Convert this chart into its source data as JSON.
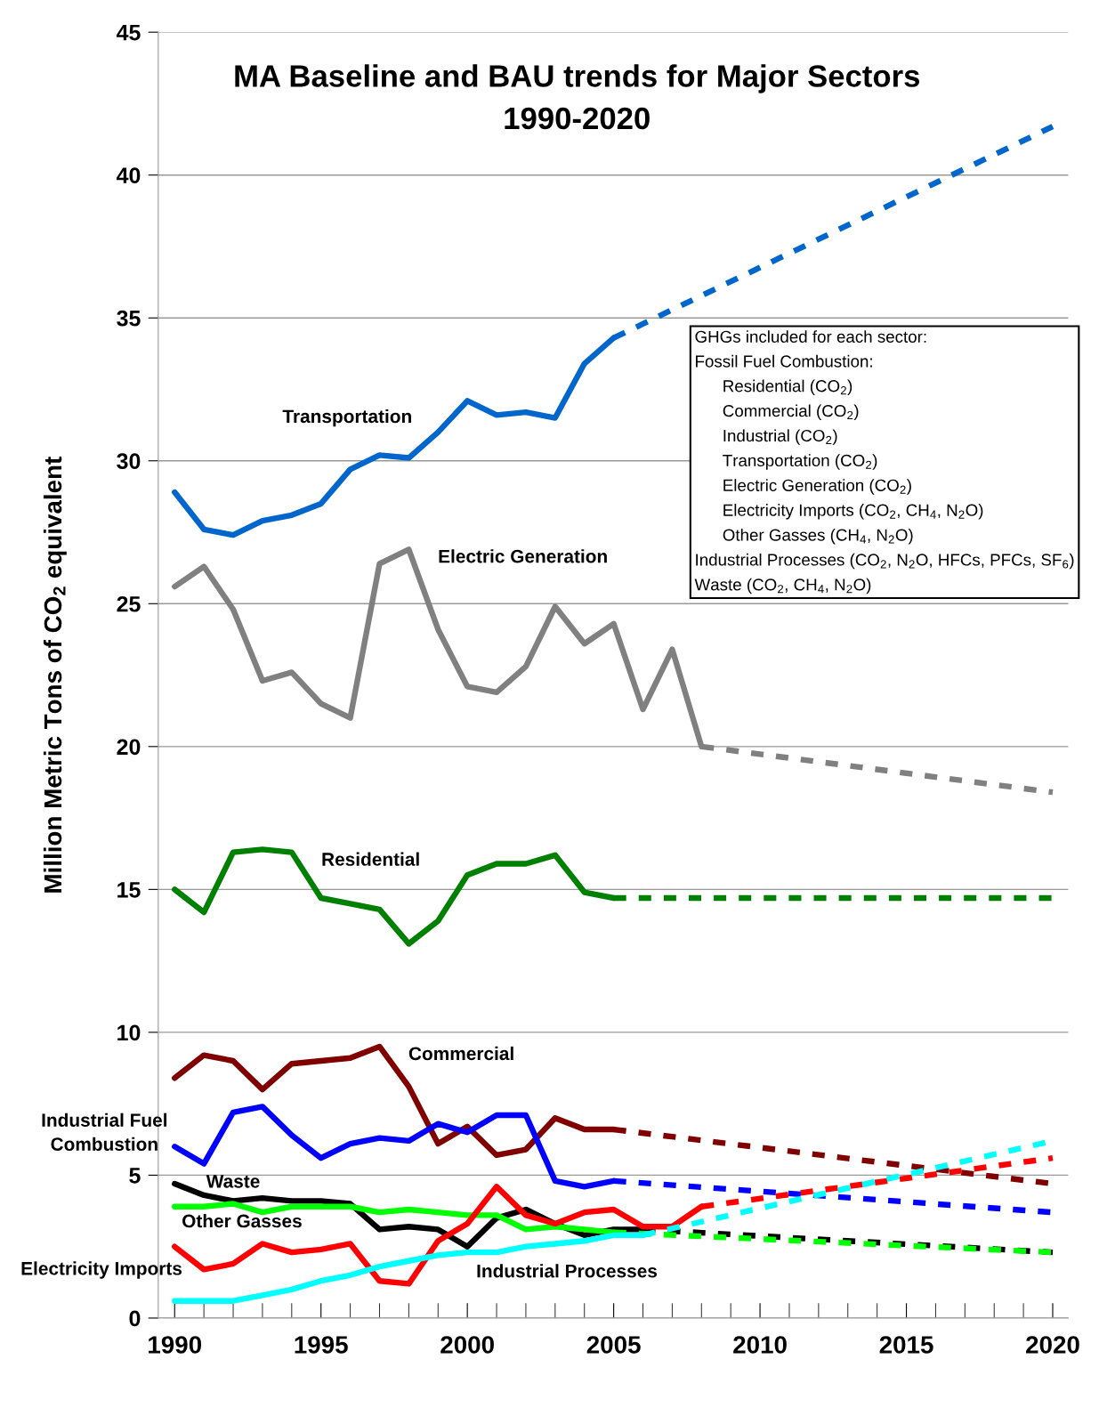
{
  "chart_data": {
    "type": "line",
    "title": "MA Baseline and BAU trends for Major Sectors\n1990-2020",
    "ylabel": "Million Metric Tons of CO$_{2}$ equivalent",
    "xlim": [
      1989.44,
      2020.53
    ],
    "xticks": [
      1990,
      1995,
      2000,
      2005,
      2010,
      2015,
      2020
    ],
    "ylim": [
      0,
      45
    ],
    "yticks": [
      0,
      5,
      10,
      15,
      20,
      25,
      30,
      35,
      40,
      45
    ],
    "grid": "y",
    "legend": false,
    "marker": "none",
    "annotations": [
      "GHGs included for each sector:\nFossil Fuel Combustion:\n      Residential (CO$_{2}$)\n      Commercial (CO$_{2}$)\n      Industrial (CO$_{2}$)\n      Transportation (CO$_{2}$)\n      Electric Generation (CO$_{2}$)\n      Electricity Imports (CO$_{2}$, CH$_{4}$, N$_{2}$O)\n      Other Gasses (CH$_{4}$, N$_{2}$O)\nIndustrial Processes (CO$_{2}$, N$_{2}$O, HFCs, PFCs, SF$_{6}$)\nWaste (CO$_{2}$, CH$_{4}$, N$_{2}$O)"
    ],
    "series": [
      {
        "name": "Transportation",
        "color": "#0066cc",
        "line_style": "solid",
        "x": [
          1990,
          1991,
          1992,
          1993,
          1994,
          1995,
          1996,
          1997,
          1998,
          1999,
          2000,
          2001,
          2002,
          2003,
          2004,
          2005
        ],
        "values": [
          28.9,
          27.6,
          27.4,
          27.9,
          28.1,
          28.5,
          29.7,
          30.2,
          30.1,
          31.0,
          32.1,
          31.6,
          31.7,
          31.5,
          33.4,
          34.3
        ]
      },
      {
        "color": "#0066cc",
        "line_style": "dashed",
        "x": [
          2005,
          2020
        ],
        "values": [
          34.3,
          41.7
        ]
      },
      {
        "name": "Electric Generation",
        "color": "#808080",
        "line_style": "solid",
        "x": [
          1990,
          1991,
          1992,
          1993,
          1994,
          1995,
          1996,
          1997,
          1998,
          1999,
          2000,
          2001,
          2002,
          2003,
          2004,
          2005,
          2006,
          2007,
          2008
        ],
        "values": [
          25.6,
          26.3,
          24.8,
          22.3,
          22.6,
          21.5,
          21.0,
          26.4,
          26.9,
          24.1,
          22.1,
          21.9,
          22.8,
          24.9,
          23.6,
          24.3,
          21.3,
          23.4,
          20.0
        ]
      },
      {
        "color": "#808080",
        "line_style": "dashed",
        "x": [
          2008,
          2020
        ],
        "values": [
          20.0,
          18.4
        ]
      },
      {
        "name": "Residential",
        "color": "#008000",
        "line_style": "solid",
        "x": [
          1990,
          1991,
          1992,
          1993,
          1994,
          1995,
          1996,
          1997,
          1998,
          1999,
          2000,
          2001,
          2002,
          2003,
          2004,
          2005
        ],
        "values": [
          15.0,
          14.2,
          16.3,
          16.4,
          16.3,
          14.7,
          14.5,
          14.3,
          13.1,
          13.9,
          15.5,
          15.9,
          15.9,
          16.2,
          14.9,
          14.7
        ]
      },
      {
        "color": "#008000",
        "line_style": "dashed",
        "x": [
          2005,
          2020
        ],
        "values": [
          14.7,
          14.7
        ]
      },
      {
        "name": "Commercial",
        "color": "#800000",
        "line_style": "solid",
        "x": [
          1990,
          1991,
          1992,
          1993,
          1994,
          1995,
          1996,
          1997,
          1998,
          1999,
          2000,
          2001,
          2002,
          2003,
          2004,
          2005
        ],
        "values": [
          8.4,
          9.2,
          9.0,
          8.0,
          8.9,
          9.0,
          9.1,
          9.5,
          8.1,
          6.1,
          6.7,
          5.7,
          5.9,
          7.0,
          6.6,
          6.6
        ]
      },
      {
        "color": "#800000",
        "line_style": "dashed",
        "x": [
          2005,
          2020
        ],
        "values": [
          6.6,
          4.7
        ]
      },
      {
        "name": "Industrial Fuel\nCombustion",
        "color": "#0000ff",
        "line_style": "solid",
        "x": [
          1990,
          1991,
          1992,
          1993,
          1994,
          1995,
          1996,
          1997,
          1998,
          1999,
          2000,
          2001,
          2002,
          2003,
          2004,
          2005
        ],
        "values": [
          6.0,
          5.4,
          7.2,
          7.4,
          6.4,
          5.6,
          6.1,
          6.3,
          6.2,
          6.8,
          6.5,
          7.1,
          7.1,
          4.8,
          4.6,
          4.8
        ]
      },
      {
        "color": "#0000ff",
        "line_style": "dashed",
        "x": [
          2005,
          2020
        ],
        "values": [
          4.8,
          3.7
        ]
      },
      {
        "name": "Waste",
        "color": "#000000",
        "line_style": "solid",
        "x": [
          1990,
          1991,
          1992,
          1993,
          1994,
          1995,
          1996,
          1997,
          1998,
          1999,
          2000,
          2001,
          2002,
          2003,
          2004,
          2005,
          2006
        ],
        "values": [
          4.7,
          4.3,
          4.1,
          4.2,
          4.1,
          4.1,
          4.0,
          3.1,
          3.2,
          3.1,
          2.5,
          3.5,
          3.8,
          3.3,
          2.9,
          3.1,
          3.1
        ]
      },
      {
        "color": "#000000",
        "line_style": "dashed",
        "x": [
          2006,
          2020
        ],
        "values": [
          3.1,
          2.3
        ]
      },
      {
        "name": "Other Gasses",
        "color": "#00ff00",
        "line_style": "solid",
        "x": [
          1990,
          1991,
          1992,
          1993,
          1994,
          1995,
          1996,
          1997,
          1998,
          1999,
          2000,
          2001,
          2002,
          2003,
          2004,
          2005
        ],
        "values": [
          3.9,
          3.9,
          4.0,
          3.7,
          3.9,
          3.9,
          3.9,
          3.7,
          3.8,
          3.7,
          3.6,
          3.6,
          3.1,
          3.2,
          3.1,
          3.0
        ]
      },
      {
        "color": "#00ff00",
        "line_style": "dashed",
        "x": [
          2005,
          2020
        ],
        "values": [
          3.0,
          2.3
        ]
      },
      {
        "name": "Electricity Imports",
        "color": "#ff0000",
        "line_style": "solid",
        "x": [
          1990,
          1991,
          1992,
          1993,
          1994,
          1995,
          1996,
          1997,
          1998,
          1999,
          2000,
          2001,
          2002,
          2003,
          2004,
          2005,
          2006,
          2007,
          2008
        ],
        "values": [
          2.5,
          1.7,
          1.9,
          2.6,
          2.3,
          2.4,
          2.6,
          1.3,
          1.2,
          2.7,
          3.3,
          4.6,
          3.6,
          3.3,
          3.7,
          3.8,
          3.2,
          3.2,
          3.9
        ]
      },
      {
        "color": "#ff0000",
        "line_style": "dashed",
        "x": [
          2008,
          2020
        ],
        "values": [
          3.9,
          5.6
        ]
      },
      {
        "name": "Industrial Processes",
        "color": "#00ffff",
        "line_style": "solid",
        "x": [
          1990,
          1991,
          1992,
          1993,
          1994,
          1995,
          1996,
          1997,
          1998,
          1999,
          2000,
          2001,
          2002,
          2003,
          2004,
          2005,
          2006
        ],
        "values": [
          0.6,
          0.6,
          0.6,
          0.8,
          1.0,
          1.3,
          1.5,
          1.8,
          2.0,
          2.2,
          2.3,
          2.3,
          2.5,
          2.6,
          2.7,
          2.9,
          2.9
        ]
      },
      {
        "color": "#00ffff",
        "line_style": "dashed",
        "x": [
          2006,
          2020
        ],
        "values": [
          2.9,
          6.2
        ]
      }
    ]
  }
}
